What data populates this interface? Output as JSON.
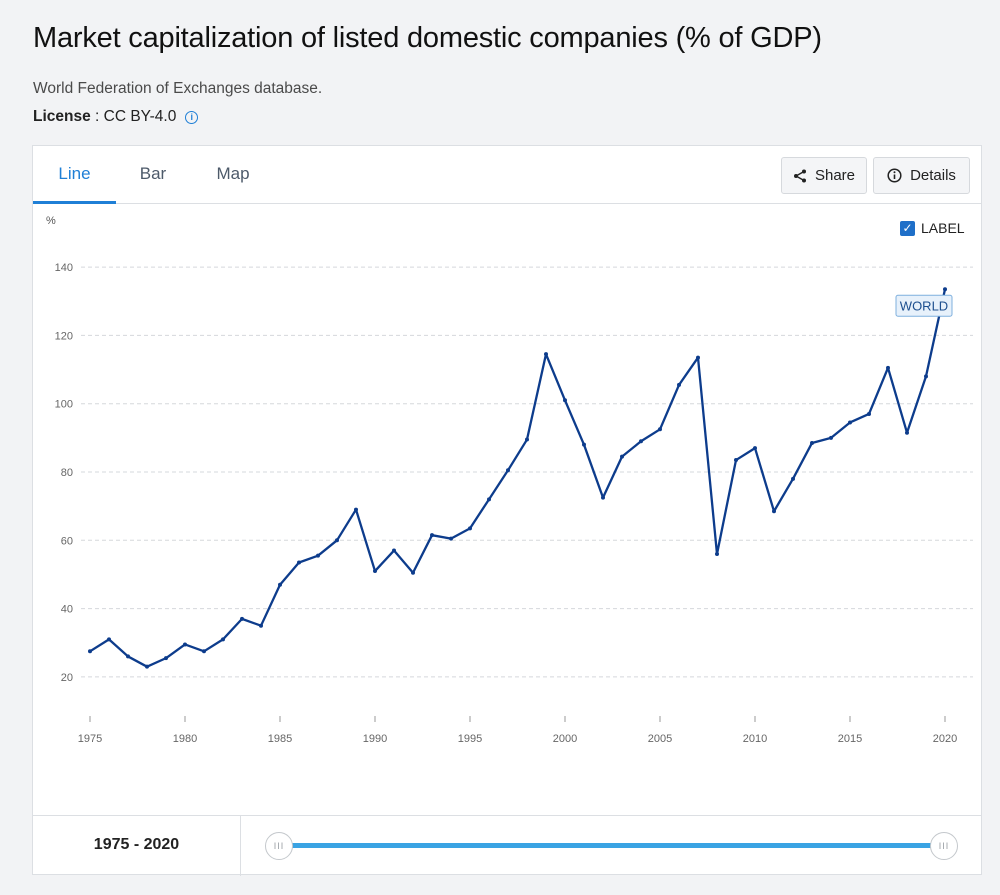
{
  "page": {
    "title": "Market capitalization of listed domestic companies (% of GDP)",
    "source": "World Federation of Exchanges database.",
    "license_label": "License",
    "license_value": " : CC BY-4.0"
  },
  "tabs": [
    "Line",
    "Bar",
    "Map"
  ],
  "toolbar": {
    "share_label": "Share",
    "details_label": "Details",
    "label_toggle": "LABEL"
  },
  "footer": {
    "range_label": "1975 - 2020",
    "handle_glyph": "III"
  },
  "colors": {
    "line": "#0d3c8c",
    "accent": "#1f7fd6",
    "grid": "#d5d8dc",
    "slider": "#3aa3e3"
  },
  "chart_data": {
    "type": "line",
    "title": "Market capitalization of listed domestic companies (% of GDP)",
    "ylabel": "%",
    "xlabel": "",
    "ylim": [
      15,
      145
    ],
    "xlim": [
      1975,
      2020
    ],
    "yticks": [
      20,
      40,
      60,
      80,
      100,
      120,
      140
    ],
    "xticks": [
      1975,
      1980,
      1985,
      1990,
      1995,
      2000,
      2005,
      2010,
      2015,
      2020
    ],
    "series": [
      {
        "name": "WORLD",
        "x": [
          1975,
          1976,
          1977,
          1978,
          1979,
          1980,
          1981,
          1982,
          1983,
          1984,
          1985,
          1986,
          1987,
          1988,
          1989,
          1990,
          1991,
          1992,
          1993,
          1994,
          1995,
          1996,
          1997,
          1998,
          1999,
          2000,
          2001,
          2002,
          2003,
          2004,
          2005,
          2006,
          2007,
          2008,
          2009,
          2010,
          2011,
          2012,
          2013,
          2014,
          2015,
          2016,
          2017,
          2018,
          2019,
          2020
        ],
        "values": [
          27.5,
          31,
          26,
          23,
          25.5,
          29.5,
          27.5,
          31,
          37,
          35,
          47,
          53.5,
          55.5,
          60,
          69,
          51,
          57,
          50.5,
          61.5,
          60.5,
          63.5,
          72,
          80.5,
          89.5,
          114.5,
          101,
          88,
          72.5,
          84.5,
          89,
          92.5,
          105.5,
          113.5,
          56,
          83.5,
          87,
          68.5,
          78,
          88.5,
          90,
          94.5,
          97,
          110.5,
          91.5,
          108,
          133.5
        ]
      }
    ]
  }
}
